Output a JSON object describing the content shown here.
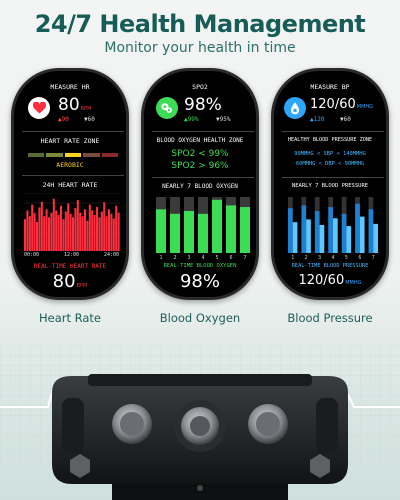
{
  "header": {
    "title": "24/7 Health Management",
    "subtitle": "Monitor your health in time"
  },
  "heart_rate": {
    "heading": "MEASURE HR",
    "value": "80",
    "unit": "BPM",
    "max": "▲90",
    "min": "▼60",
    "zone_heading": "HEART RATE ZONE",
    "zone_label": "AEROBIC",
    "chart_heading": "24H HEART RATE",
    "time_labels": [
      "00:00",
      "12:00",
      "24:00"
    ],
    "realtime_label": "REAL-TIME HEART RATE",
    "realtime_value": "80",
    "realtime_unit": "BPM",
    "caption": "Heart Rate",
    "bars": [
      55,
      70,
      60,
      80,
      65,
      50,
      75,
      85,
      60,
      72,
      58,
      66,
      90,
      70,
      62,
      78,
      55,
      68,
      82,
      64,
      58,
      74,
      88,
      66,
      60,
      72,
      52,
      80,
      70,
      62,
      76,
      58,
      68,
      84,
      60,
      72,
      64,
      56,
      78,
      66
    ]
  },
  "blood_oxygen": {
    "heading": "SPO2",
    "value": "98%",
    "max": "▲99%",
    "min": "▼95%",
    "zone_heading": "BLOOD OXYGEN HEALTH ZONE",
    "zone_line1": "SPO2 < 99%",
    "zone_line2": "SPO2 > 96%",
    "chart_heading": "NEARLY 7 BLOOD OXYGEN",
    "day_labels": [
      "1",
      "2",
      "3",
      "4",
      "5",
      "6",
      "7"
    ],
    "realtime_label": "REAL-TIME BLOOD OXYGEN",
    "realtime_value": "98%",
    "caption": "Blood Oxygen",
    "bars": [
      0.78,
      0.7,
      0.75,
      0.7,
      0.95,
      0.85,
      0.82
    ]
  },
  "blood_pressure": {
    "heading": "MEASURE BP",
    "value": "120/60",
    "unit": "MMHG",
    "max": "▲120",
    "min": "▼60",
    "zone_heading": "HEALTHY BLOOD PRESSURE ZONE",
    "zone_line1": "90MMHG < SBP < 140MMHG",
    "zone_line2": "60MMHG < DBP < 90MMHG",
    "chart_heading": "NEARLY 7 BLOOD PRESSURE",
    "day_labels": [
      "1",
      "2",
      "3",
      "4",
      "5",
      "6",
      "7"
    ],
    "realtime_label": "REAL-TIME BLOOD PRESSURE",
    "realtime_value": "120/60",
    "realtime_unit": "MMHG",
    "caption": "Blood Pressure",
    "bars_high": [
      0.8,
      0.85,
      0.75,
      0.82,
      0.7,
      0.88,
      0.78
    ],
    "bars_low": [
      0.55,
      0.6,
      0.5,
      0.62,
      0.48,
      0.65,
      0.52
    ]
  },
  "colors": {
    "title": "#175c56",
    "heart": "#ff2f3f",
    "oxygen": "#3cdc54",
    "pressure": "#2ea6ff"
  }
}
